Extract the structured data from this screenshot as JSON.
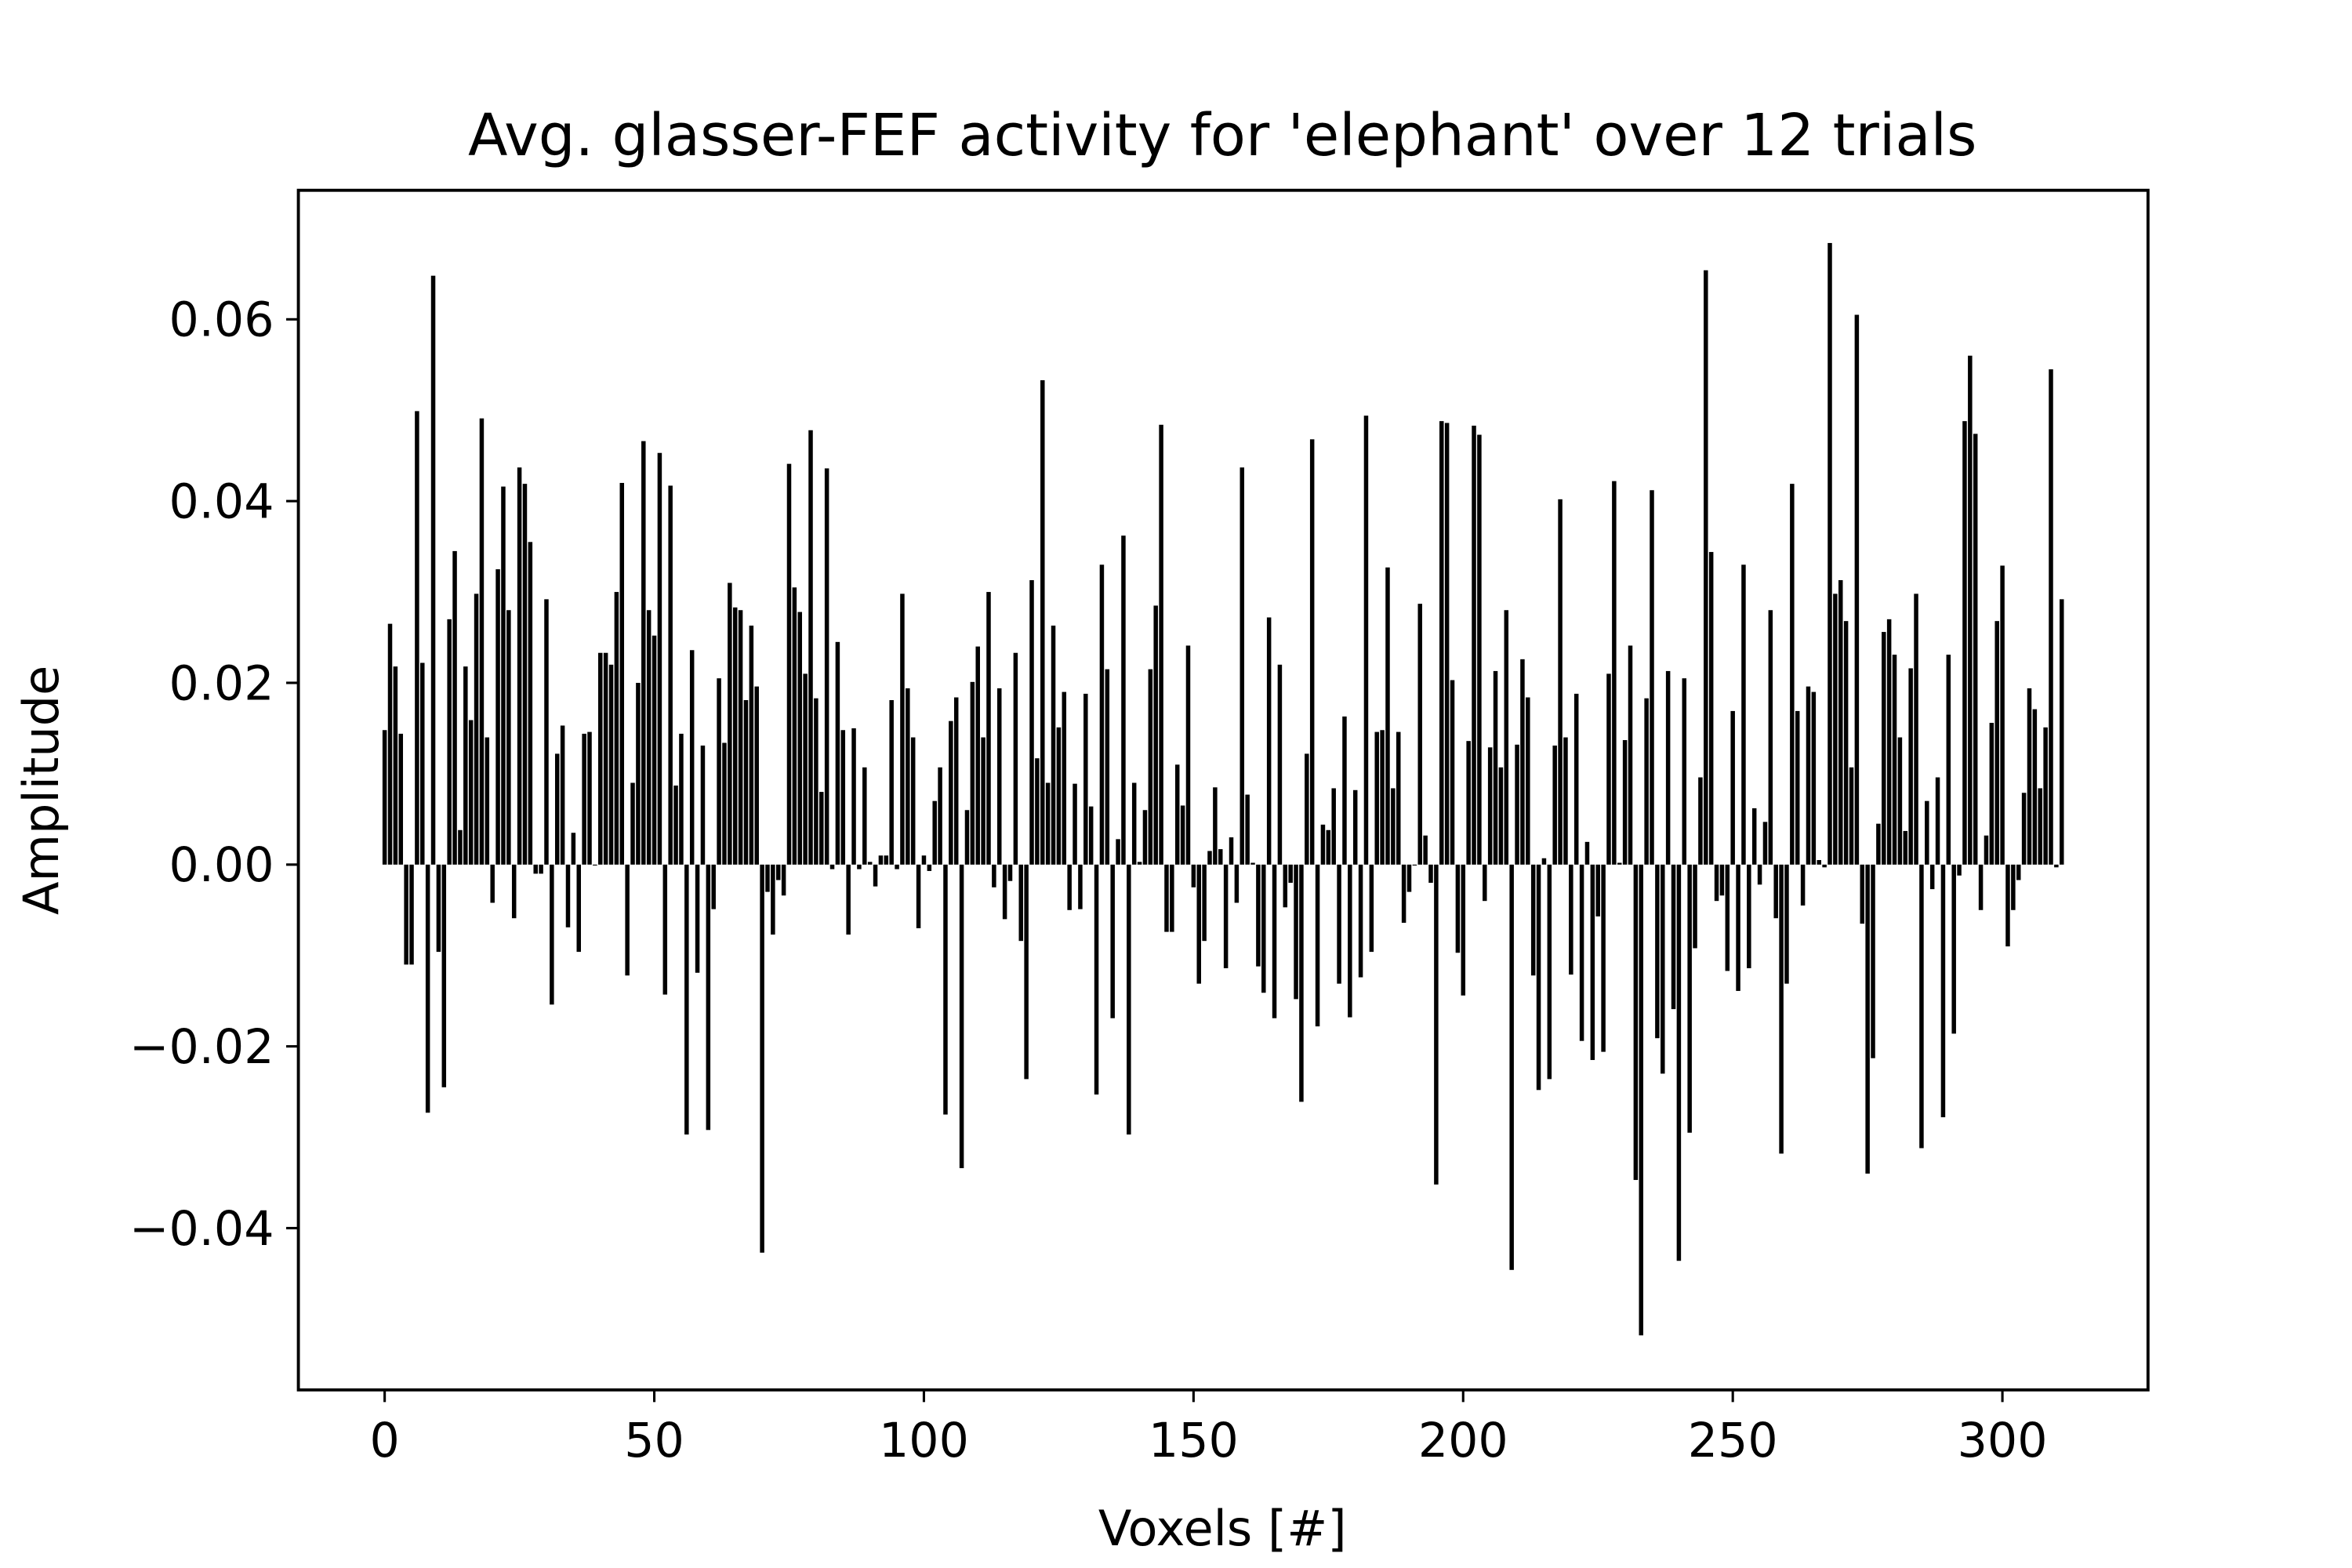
{
  "chart_data": {
    "type": "bar",
    "title": "Avg. glasser-FEF activity for 'elephant' over 12 trials",
    "xlabel": "Voxels [#]",
    "ylabel": "Amplitude",
    "color": "#000000",
    "bar_width": 0.8,
    "x": [
      0,
      1,
      2,
      3,
      4,
      5,
      6,
      7,
      8,
      9,
      10,
      11,
      12,
      13,
      14,
      15,
      16,
      17,
      18,
      19,
      20,
      21,
      22,
      23,
      24,
      25,
      26,
      27,
      28,
      29,
      30,
      31,
      32,
      33,
      34,
      35,
      36,
      37,
      38,
      39,
      40,
      41,
      42,
      43,
      44,
      45,
      46,
      47,
      48,
      49,
      50,
      51,
      52,
      53,
      54,
      55,
      56,
      57,
      58,
      59,
      60,
      61,
      62,
      63,
      64,
      65,
      66,
      67,
      68,
      69,
      70,
      71,
      72,
      73,
      74,
      75,
      76,
      77,
      78,
      79,
      80,
      81,
      82,
      83,
      84,
      85,
      86,
      87,
      88,
      89,
      90,
      91,
      92,
      93,
      94,
      95,
      96,
      97,
      98,
      99,
      100,
      101,
      102,
      103,
      104,
      105,
      106,
      107,
      108,
      109,
      110,
      111,
      112,
      113,
      114,
      115,
      116,
      117,
      118,
      119,
      120,
      121,
      122,
      123,
      124,
      125,
      126,
      127,
      128,
      129,
      130,
      131,
      132,
      133,
      134,
      135,
      136,
      137,
      138,
      139,
      140,
      141,
      142,
      143,
      144,
      145,
      146,
      147,
      148,
      149,
      150,
      151,
      152,
      153,
      154,
      155,
      156,
      157,
      158,
      159,
      160,
      161,
      162,
      163,
      164,
      165,
      166,
      167,
      168,
      169,
      170,
      171,
      172,
      173,
      174,
      175,
      176,
      177,
      178,
      179,
      180,
      181,
      182,
      183,
      184,
      185,
      186,
      187,
      188,
      189,
      190,
      191,
      192,
      193,
      194,
      195,
      196,
      197,
      198,
      199,
      200,
      201,
      202,
      203,
      204,
      205,
      206,
      207,
      208,
      209,
      210,
      211,
      212,
      213,
      214,
      215,
      216,
      217,
      218,
      219,
      220,
      221,
      222,
      223,
      224,
      225,
      226,
      227,
      228,
      229,
      230,
      231,
      232,
      233,
      234,
      235,
      236,
      237,
      238,
      239,
      240,
      241,
      242,
      243,
      244,
      245,
      246,
      247,
      248,
      249,
      250,
      251,
      252,
      253,
      254,
      255,
      256,
      257,
      258,
      259,
      260,
      261,
      262,
      263,
      264,
      265,
      266,
      267,
      268,
      269,
      270,
      271,
      272,
      273,
      274,
      275,
      276,
      277,
      278,
      279,
      280,
      281,
      282,
      283,
      284,
      285,
      286,
      287,
      288,
      289,
      290,
      291,
      292,
      293,
      294,
      295,
      296,
      297,
      298,
      299,
      300,
      301,
      302,
      303,
      304,
      305,
      306,
      307,
      308,
      309,
      310,
      311
    ],
    "values": [
      0.0148,
      0.0265,
      0.0218,
      0.0144,
      -0.011,
      -0.011,
      0.0499,
      0.0222,
      -0.0273,
      0.0648,
      -0.0096,
      -0.0245,
      0.027,
      0.0345,
      0.0038,
      0.0218,
      0.0159,
      0.0298,
      0.0491,
      0.014,
      -0.0042,
      0.0325,
      0.0416,
      0.028,
      -0.0059,
      0.0437,
      0.0419,
      0.0355,
      -0.001,
      -0.001,
      0.0292,
      -0.0154,
      0.0122,
      0.0153,
      -0.0069,
      0.0035,
      -0.0096,
      0.0144,
      0.0146,
      0,
      0.0233,
      0.0233,
      0.022,
      0.03,
      0.042,
      -0.0122,
      0.009,
      0.02,
      0.0466,
      0.028,
      0.0252,
      0.0453,
      -0.0143,
      0.0417,
      0.0087,
      0.0144,
      -0.0297,
      0.0236,
      -0.0119,
      0.0131,
      -0.0292,
      -0.0049,
      0.0205,
      0.0134,
      0.031,
      0.0283,
      0.028,
      0.0181,
      0.0263,
      0.0196,
      -0.0427,
      -0.003,
      -0.0077,
      -0.0017,
      -0.0034,
      0.0441,
      0.0305,
      0.0278,
      0.021,
      0.0478,
      0.0183,
      0.008,
      0.0436,
      -0.0005,
      0.0245,
      0.0148,
      -0.0077,
      0.015,
      -0.0005,
      0.0107,
      0.0003,
      -0.0024,
      0.001,
      0.001,
      0.0181,
      -0.0005,
      0.0298,
      0.0194,
      0.014,
      -0.007,
      0.001,
      -0.0007,
      0.007,
      0.0107,
      -0.0275,
      0.0158,
      0.0184,
      -0.0334,
      0.006,
      0.0201,
      0.024,
      0.014,
      0.03,
      -0.0025,
      0.0194,
      -0.006,
      -0.0018,
      0.0233,
      -0.0084,
      -0.0236,
      0.0313,
      0.0117,
      0.0533,
      0.009,
      0.0263,
      0.0151,
      0.019,
      -0.005,
      0.0089,
      -0.0049,
      0.0188,
      0.0064,
      -0.0253,
      0.033,
      0.0215,
      -0.0169,
      0.0028,
      0.0362,
      -0.0297,
      0.009,
      0.0003,
      0.006,
      0.0215,
      0.0285,
      0.0484,
      -0.0074,
      -0.0074,
      0.011,
      0.0065,
      0.0241,
      -0.0025,
      -0.0131,
      -0.0084,
      0.0015,
      0.0085,
      0.0017,
      -0.0114,
      0.003,
      -0.0042,
      0.0437,
      0.0077,
      0.0002,
      -0.0112,
      -0.0141,
      0.0272,
      -0.0169,
      0.022,
      -0.0047,
      -0.002,
      -0.0148,
      -0.0261,
      0.0122,
      0.0468,
      -0.0178,
      0.0044,
      0.0038,
      0.0084,
      -0.0131,
      0.0163,
      -0.0168,
      0.0082,
      -0.0124,
      0.0494,
      -0.0096,
      0.0146,
      0.0148,
      0.0327,
      0.0084,
      0.0146,
      -0.0064,
      -0.003,
      0,
      0.0287,
      0.0032,
      -0.002,
      -0.0352,
      0.0488,
      0.0486,
      0.0203,
      -0.0097,
      -0.0144,
      0.0136,
      0.0483,
      0.0473,
      -0.004,
      0.0129,
      0.0213,
      0.0107,
      0.028,
      -0.0446,
      0.0132,
      0.0226,
      0.0184,
      -0.0122,
      -0.0248,
      0.0007,
      -0.0236,
      0.0131,
      0.0402,
      0.014,
      -0.0121,
      0.0188,
      -0.0194,
      0.0025,
      -0.0215,
      -0.0057,
      -0.0206,
      0.021,
      0.0422,
      0.0002,
      0.0137,
      0.0241,
      -0.0347,
      -0.0518,
      0.0183,
      0.0412,
      -0.0191,
      -0.023,
      0.0213,
      -0.0159,
      -0.0436,
      0.0205,
      -0.0295,
      -0.0092,
      0.0096,
      0.0654,
      0.0344,
      -0.004,
      -0.0034,
      -0.0117,
      0.0169,
      -0.0139,
      0.033,
      -0.0114,
      0.0062,
      -0.0022,
      0.0047,
      0.028,
      -0.0059,
      -0.0318,
      -0.0131,
      0.0419,
      0.0169,
      -0.0045,
      0.0196,
      0.019,
      0.0005,
      -0.0003,
      0.0684,
      0.0298,
      0.0313,
      0.0268,
      0.0107,
      0.0605,
      -0.0065,
      -0.034,
      -0.0213,
      0.0045,
      0.0256,
      0.027,
      0.0231,
      0.014,
      0.0037,
      0.0216,
      0.0298,
      -0.0312,
      0.007,
      -0.0027,
      0.0096,
      -0.0278,
      0.0231,
      -0.0186,
      -0.0012,
      0.0488,
      0.056,
      0.0474,
      -0.005,
      0.0032,
      0.0156,
      0.0268,
      0.0329,
      -0.009,
      -0.005,
      -0.0017,
      0.0079,
      0.0194,
      0.0171,
      0.0084,
      0.0151,
      0.0545,
      -0.0003,
      0.0292
    ],
    "xlim": [
      -16,
      327
    ],
    "xticks": [
      0,
      50,
      100,
      150,
      200,
      250,
      300
    ],
    "ylim": [
      -0.0578,
      0.0742
    ],
    "yticks": [
      {
        "value": -0.04,
        "label": "−0.04"
      },
      {
        "value": -0.02,
        "label": "−0.02"
      },
      {
        "value": 0,
        "label": "0.00"
      },
      0.02,
      0.04,
      0.06
    ]
  }
}
